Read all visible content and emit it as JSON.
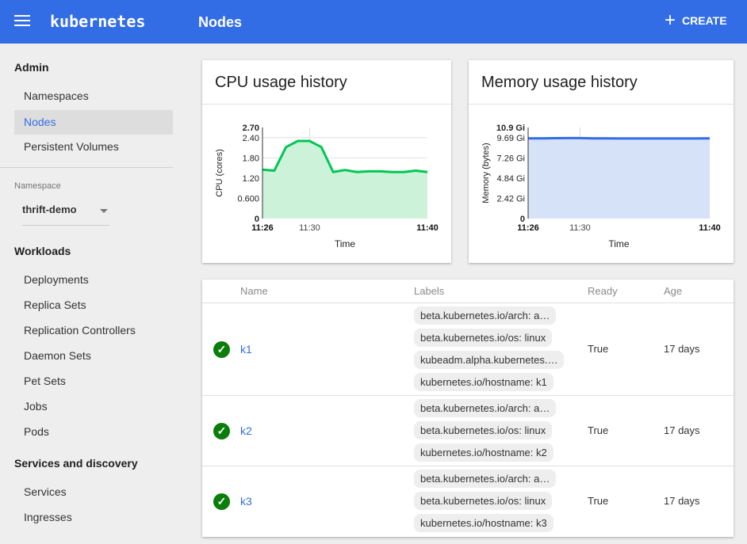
{
  "header": {
    "app": "kubernetes",
    "title": "Nodes",
    "create_label": "CREATE"
  },
  "sidebar": {
    "admin": {
      "heading": "Admin",
      "items": [
        {
          "label": "Namespaces"
        },
        {
          "label": "Nodes",
          "selected": true
        },
        {
          "label": "Persistent Volumes"
        }
      ]
    },
    "namespace": {
      "label": "Namespace",
      "value": "thrift-demo"
    },
    "workloads": {
      "heading": "Workloads",
      "items": [
        {
          "label": "Deployments"
        },
        {
          "label": "Replica Sets"
        },
        {
          "label": "Replication Controllers"
        },
        {
          "label": "Daemon Sets"
        },
        {
          "label": "Pet Sets"
        },
        {
          "label": "Jobs"
        },
        {
          "label": "Pods"
        }
      ]
    },
    "services": {
      "heading": "Services and discovery",
      "items": [
        {
          "label": "Services"
        },
        {
          "label": "Ingresses"
        }
      ]
    }
  },
  "chart_data": [
    {
      "type": "area",
      "title": "CPU usage history",
      "xlabel": "Time",
      "ylabel": "CPU (cores)",
      "color": "#00c752",
      "fill": "#cdf2da",
      "x": [
        "11:26",
        "11:27",
        "11:28",
        "11:29",
        "11:30",
        "11:31",
        "11:32",
        "11:33",
        "11:34",
        "11:35",
        "11:36",
        "11:37",
        "11:38",
        "11:39",
        "11:40"
      ],
      "values": [
        1.45,
        1.42,
        2.12,
        2.3,
        2.3,
        2.12,
        1.38,
        1.44,
        1.38,
        1.4,
        1.4,
        1.38,
        1.38,
        1.42,
        1.38
      ],
      "yticks": [
        "0",
        "0.600",
        "1.20",
        "1.80",
        "2.40",
        "2.70"
      ],
      "ytick_values": [
        0,
        0.6,
        1.2,
        1.8,
        2.4,
        2.7
      ],
      "ylim": [
        0,
        2.7
      ],
      "xticks": [
        "11:26",
        "11:30",
        "11:40"
      ],
      "xtick_minutes": [
        0,
        4,
        14
      ],
      "grid": true
    },
    {
      "type": "area",
      "title": "Memory usage history",
      "xlabel": "Time",
      "ylabel": "Memory (bytes)",
      "color": "#326de6",
      "fill": "#d6e2f8",
      "x": [
        "11:26",
        "11:27",
        "11:28",
        "11:29",
        "11:30",
        "11:31",
        "11:32",
        "11:33",
        "11:34",
        "11:35",
        "11:36",
        "11:37",
        "11:38",
        "11:39",
        "11:40"
      ],
      "values": [
        9.6,
        9.6,
        9.62,
        9.63,
        9.63,
        9.6,
        9.6,
        9.58,
        9.58,
        9.58,
        9.58,
        9.58,
        9.58,
        9.58,
        9.6
      ],
      "yticks": [
        "0",
        "2.42 Gi",
        "4.84 Gi",
        "7.26 Gi",
        "9.69 Gi",
        "10.9 Gi"
      ],
      "ytick_values": [
        0,
        2.42,
        4.84,
        7.26,
        9.69,
        10.9
      ],
      "ylim": [
        0,
        10.9
      ],
      "xticks": [
        "11:26",
        "11:30",
        "11:40"
      ],
      "xtick_minutes": [
        0,
        4,
        14
      ],
      "grid": true
    }
  ],
  "table": {
    "headers": {
      "name": "Name",
      "labels": "Labels",
      "ready": "Ready",
      "age": "Age"
    },
    "rows": [
      {
        "name": "k1",
        "status": "check-icon",
        "labels": [
          "beta.kubernetes.io/arch: a…",
          "beta.kubernetes.io/os: linux",
          "kubeadm.alpha.kubernetes.…",
          "kubernetes.io/hostname: k1"
        ],
        "ready": "True",
        "age": "17 days"
      },
      {
        "name": "k2",
        "status": "check-icon",
        "labels": [
          "beta.kubernetes.io/arch: a…",
          "beta.kubernetes.io/os: linux",
          "kubernetes.io/hostname: k2"
        ],
        "ready": "True",
        "age": "17 days"
      },
      {
        "name": "k3",
        "status": "check-icon",
        "labels": [
          "beta.kubernetes.io/arch: a…",
          "beta.kubernetes.io/os: linux",
          "kubernetes.io/hostname: k3"
        ],
        "ready": "True",
        "age": "17 days"
      }
    ]
  }
}
